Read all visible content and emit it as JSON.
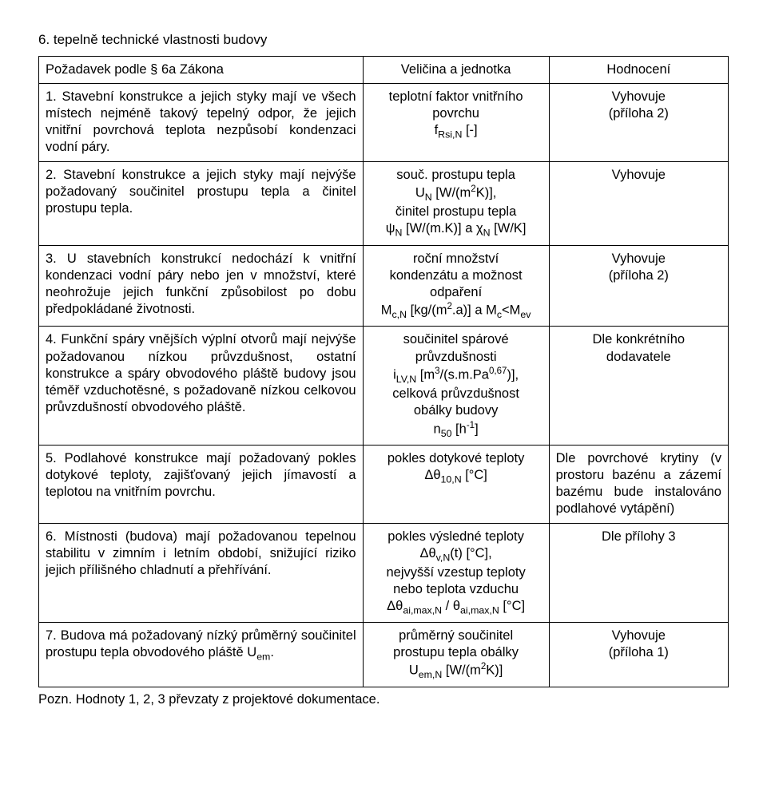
{
  "section_title": "6.   tepelně technické vlastnosti budovy",
  "table": {
    "headers": {
      "col1": "Požadavek podle § 6a Zákona",
      "col2": "Veličina a jednotka",
      "col3": "Hodnocení"
    },
    "rows": [
      {
        "req": "1. Stavební konstrukce a jejich styky mají ve všech místech nejméně takový tepelný odpor, že jejich vnitřní povrchová teplota nezpůsobí kondenzaci vodní páry.",
        "qty_html": "teplotní faktor vnitřního<br>povrchu<br>f<sub>Rsi,N</sub> [-]",
        "eval_html": "Vyhovuje<br>(příloha 2)"
      },
      {
        "req": "2. Stavební konstrukce a jejich styky mají nejvýše požadovaný součinitel prostupu tepla a činitel prostupu tepla.",
        "qty_html": "souč. prostupu tepla<br>U<sub>N</sub> [W/(m<sup>2</sup>K)],<br>činitel prostupu tepla<br>ψ<sub>N</sub> [W/(m.K)] a χ<sub>N</sub> [W/K]",
        "eval_html": "Vyhovuje"
      },
      {
        "req": "3. U stavebních konstrukcí nedochází k vnitřní kondenzaci vodní páry nebo jen v množství, které neohrožuje jejich funkční způsobilost po dobu předpokládané životnosti.",
        "qty_html": "roční množství<br>kondenzátu a možnost<br>odpaření<br>M<sub>c,N</sub> [kg/(m<sup>2</sup>.a)] a M<sub>c</sub>&lt;M<sub>ev</sub>",
        "eval_html": "Vyhovuje<br>(příloha 2)"
      },
      {
        "req": "4. Funkční spáry vnějších výplní otvorů mají nejvýše požadovanou nízkou průvzdušnost, ostatní konstrukce a spáry obvodového pláště budovy jsou téměř vzduchotěsné, s požadovaně nízkou celkovou průvzdušností obvodového pláště.",
        "qty_html": "součinitel spárové<br>průvzdušnosti<br>i<sub>LV,N</sub> [m<sup>3</sup>/(s.m.Pa<sup>0,67</sup>)],<br>celková průvzdušnost<br>obálky budovy<br>n<sub>50</sub> [h<sup>-1</sup>]",
        "eval_html": "Dle konkrétního<br>dodavatele"
      },
      {
        "req": "5. Podlahové konstrukce mají požadovaný pokles dotykové teploty, zajišťovaný jejich jímavostí a teplotou na vnitřním povrchu.",
        "qty_html": "pokles dotykové teploty<br>Δθ<sub>10,N</sub> [°C]",
        "eval_html": "Dle povrchové krytiny (v prostoru bazénu a zázemí bazému bude instalováno podlahové vytápění)"
      },
      {
        "req": "6. Místnosti (budova) mají požadovanou tepelnou stabilitu v zimním i letním období, snižující riziko jejich přílišného chladnutí a přehřívání.",
        "qty_html": "pokles výsledné teploty<br>Δθ<sub>v,N</sub>(t) [°C],<br>nejvyšší vzestup teploty<br>nebo teplota vzduchu<br>Δθ<sub>ai,max,N</sub> / θ<sub>ai,max,N</sub> [°C]",
        "eval_html": "Dle přílohy 3"
      },
      {
        "req": "7. Budova má požadovaný nízký průměrný součinitel prostupu tepla obvodového pláště Uem.",
        "req_html": "7. Budova má požadovaný nízký průměrný součinitel prostupu tepla obvodového pláště U<sub>em</sub>.",
        "qty_html": "průměrný součinitel<br>prostupu tepla obálky<br>U<sub>em,N</sub> [W/(m<sup>2</sup>K)]",
        "eval_html": "Vyhovuje<br>(příloha 1)"
      }
    ]
  },
  "note": "Pozn. Hodnoty 1, 2, 3 převzaty z projektové dokumentace."
}
